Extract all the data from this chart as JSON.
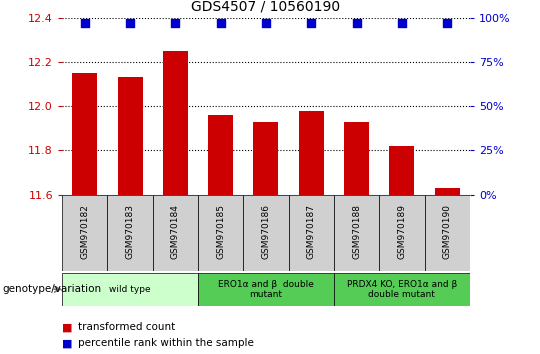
{
  "title": "GDS4507 / 10560190",
  "samples": [
    "GSM970182",
    "GSM970183",
    "GSM970184",
    "GSM970185",
    "GSM970186",
    "GSM970187",
    "GSM970188",
    "GSM970189",
    "GSM970190"
  ],
  "transformed_counts": [
    12.15,
    12.13,
    12.25,
    11.96,
    11.93,
    11.98,
    11.93,
    11.82,
    11.63
  ],
  "percentile_ranks": [
    97,
    97,
    97,
    97,
    97,
    97,
    97,
    97,
    97
  ],
  "ylim": [
    11.6,
    12.4
  ],
  "yticks_left": [
    11.6,
    11.8,
    12.0,
    12.2,
    12.4
  ],
  "yticks_right": [
    0,
    25,
    50,
    75,
    100
  ],
  "bar_color": "#cc0000",
  "dot_color": "#0000cc",
  "grid_color": "#000000",
  "group_boundaries": [
    {
      "start": 0,
      "end": 2,
      "label": "wild type",
      "color": "#ccffcc"
    },
    {
      "start": 3,
      "end": 5,
      "label": "ERO1α and β  double\nmutant",
      "color": "#55cc55"
    },
    {
      "start": 6,
      "end": 8,
      "label": "PRDX4 KO, ERO1α and β\ndouble mutant",
      "color": "#55cc55"
    }
  ],
  "legend_items": [
    {
      "color": "#cc0000",
      "label": "transformed count"
    },
    {
      "color": "#0000cc",
      "label": "percentile rank within the sample"
    }
  ],
  "bar_width": 0.55,
  "dot_size": 30,
  "background_color": "#ffffff",
  "tick_color_left": "#cc0000",
  "tick_color_right": "#0000cc",
  "sample_box_color": "#d0d0d0",
  "genotype_label": "genotype/variation"
}
